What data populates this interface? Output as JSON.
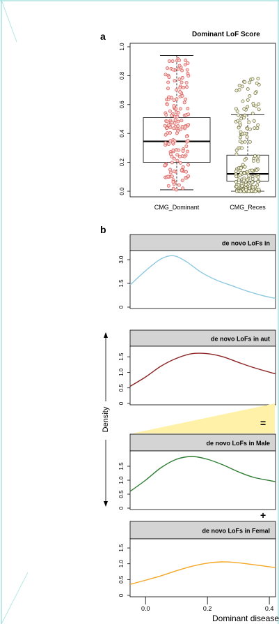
{
  "panel_a": {
    "label": "a",
    "title": "Dominant LoF Score",
    "groups": [
      "CMG_Dominant",
      "CMG_Reces"
    ],
    "y_ticks": [
      "0.0",
      "0.2",
      "0.4",
      "0.6",
      "0.8",
      "1.0"
    ]
  },
  "panel_b": {
    "label": "b",
    "density_label": "Density",
    "x_label": "Dominant disease",
    "x_ticks": [
      "0.0",
      "0.2",
      "0.4"
    ],
    "operators": [
      "=",
      "+"
    ]
  },
  "chart_data": [
    {
      "type": "box",
      "title": "Dominant LoF Score",
      "categories": [
        "CMG_Dominant",
        "CMG_Reces"
      ],
      "ylim": [
        0,
        1.0
      ],
      "series": [
        {
          "category": "CMG_Dominant",
          "whisker_low": 0.01,
          "q1": 0.2,
          "median": 0.345,
          "q3": 0.51,
          "whisker_high": 0.94,
          "color": "#d9534f"
        },
        {
          "category": "CMG_Reces",
          "whisker_low": 0.0,
          "q1": 0.07,
          "median": 0.12,
          "q3": 0.25,
          "whisker_high": 0.53,
          "color": "#6b6b3a"
        }
      ]
    },
    {
      "type": "line",
      "title": "de novo LoFs in",
      "xlim": [
        -0.05,
        0.42
      ],
      "y_ticks": [
        "0",
        "1.5",
        "3.0"
      ],
      "ylim": [
        0,
        3.4
      ],
      "color": "#8fc9e0",
      "x": [
        -0.05,
        0.0,
        0.05,
        0.09,
        0.13,
        0.18,
        0.23,
        0.28,
        0.33,
        0.38,
        0.42
      ],
      "y": [
        1.4,
        2.3,
        3.05,
        3.25,
        2.9,
        2.2,
        1.7,
        1.35,
        1.0,
        0.72,
        0.55
      ]
    },
    {
      "type": "line",
      "title": "de novo LoFs in aut",
      "xlim": [
        -0.05,
        0.42
      ],
      "y_ticks": [
        "0",
        "0.5",
        "1.0",
        "1.5"
      ],
      "ylim": [
        0,
        1.75
      ],
      "color": "#8b2323",
      "x": [
        -0.05,
        0.0,
        0.05,
        0.1,
        0.15,
        0.2,
        0.25,
        0.3,
        0.35,
        0.42
      ],
      "y": [
        0.55,
        0.85,
        1.2,
        1.45,
        1.6,
        1.6,
        1.5,
        1.32,
        1.15,
        0.95
      ]
    },
    {
      "type": "line",
      "title": "de novo LoFs in Male",
      "xlim": [
        -0.05,
        0.42
      ],
      "y_ticks": [
        "0",
        "0.5",
        "1.0",
        "1.5"
      ],
      "ylim": [
        0,
        1.95
      ],
      "color": "#2e7d32",
      "x": [
        -0.05,
        0.0,
        0.05,
        0.1,
        0.15,
        0.2,
        0.25,
        0.3,
        0.35,
        0.42
      ],
      "y": [
        0.6,
        1.0,
        1.45,
        1.75,
        1.85,
        1.75,
        1.55,
        1.3,
        1.1,
        0.95
      ]
    },
    {
      "type": "line",
      "title": "de novo LoFs in Femal",
      "xlim": [
        -0.05,
        0.42
      ],
      "y_ticks": [
        "0",
        "0.5",
        "1.0",
        "1.5"
      ],
      "ylim": [
        0,
        1.7
      ],
      "color": "#f5a623",
      "x": [
        -0.05,
        0.0,
        0.05,
        0.1,
        0.15,
        0.2,
        0.25,
        0.3,
        0.35,
        0.42
      ],
      "y": [
        0.35,
        0.48,
        0.62,
        0.78,
        0.92,
        1.02,
        1.06,
        1.03,
        0.97,
        0.88
      ]
    }
  ]
}
